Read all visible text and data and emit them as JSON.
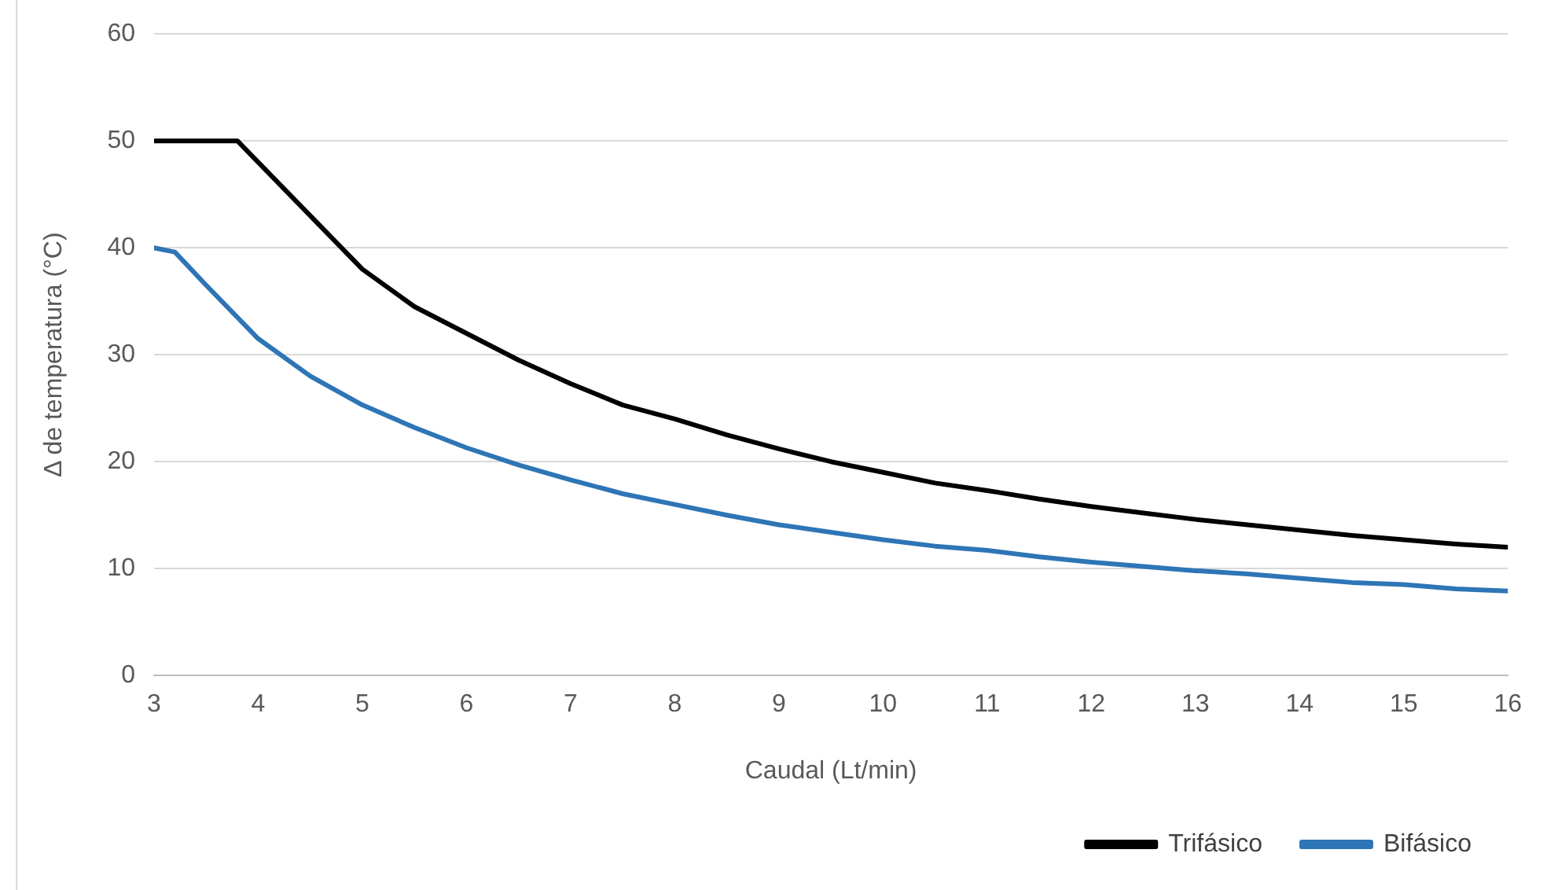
{
  "chart_data": {
    "type": "line",
    "xlabel": "Caudal (Lt/min)",
    "ylabel": "Δ de temperatura (°C)",
    "xlim": [
      3,
      16
    ],
    "xticks": [
      3,
      4,
      5,
      6,
      7,
      8,
      9,
      10,
      11,
      12,
      13,
      14,
      15,
      16
    ],
    "ylim": [
      0,
      60
    ],
    "yticks": [
      0,
      10,
      20,
      30,
      40,
      50,
      60
    ],
    "grid": "y",
    "legend": "bottom right",
    "marker": "none",
    "line_style": "solid",
    "series": [
      {
        "name": "Trifásico",
        "color": "#000000",
        "x": [
          3,
          3.5,
          3.8,
          4,
          4.5,
          5,
          5.5,
          6,
          6.5,
          7,
          7.5,
          8,
          8.5,
          9,
          9.5,
          10,
          10.5,
          11,
          11.5,
          12,
          12.5,
          13,
          13.5,
          14,
          14.5,
          15,
          15.5,
          16
        ],
        "values": [
          50,
          50,
          50,
          48,
          43,
          38,
          34.5,
          32,
          29.5,
          27.3,
          25.3,
          24,
          22.5,
          21.2,
          20,
          19,
          18,
          17.3,
          16.5,
          15.8,
          15.2,
          14.6,
          14.1,
          13.6,
          13.1,
          12.7,
          12.3,
          12
        ]
      },
      {
        "name": "Bifásico",
        "color": "#2e75b6",
        "x": [
          3,
          3.2,
          3.5,
          4,
          4.5,
          5,
          5.5,
          6,
          6.5,
          7,
          7.5,
          8,
          8.5,
          9,
          9.5,
          10,
          10.5,
          11,
          11.5,
          12,
          12.5,
          13,
          13.5,
          14,
          14.5,
          15,
          15.5,
          16
        ],
        "values": [
          40,
          39.6,
          36.5,
          31.5,
          28,
          25.3,
          23.2,
          21.3,
          19.7,
          18.3,
          17,
          16,
          15,
          14.1,
          13.4,
          12.7,
          12.1,
          11.7,
          11.1,
          10.6,
          10.2,
          9.8,
          9.5,
          9.1,
          8.7,
          8.5,
          8.1,
          7.9
        ]
      }
    ]
  }
}
